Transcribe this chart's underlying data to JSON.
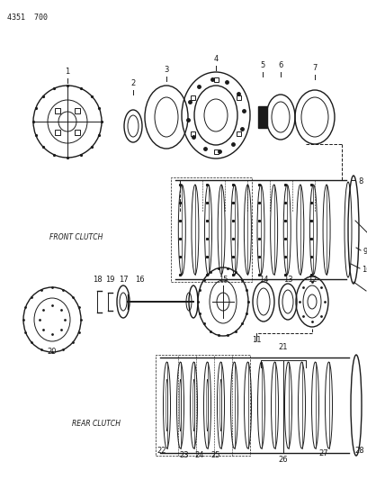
{
  "title_ref": "4351  700",
  "bg_color": "#ffffff",
  "line_color": "#1a1a1a",
  "front_clutch_label": "FRONT CLUTCH",
  "rear_clutch_label": "REAR CLUTCH"
}
